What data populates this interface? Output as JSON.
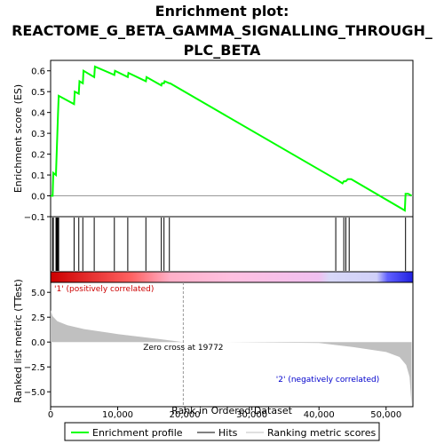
{
  "chart_data": {
    "type": "line",
    "title_lines": [
      "Enrichment plot:",
      "REACTOME_G_BETA_GAMMA_SIGNALLING_THROUGH_",
      "PLC_BETA"
    ],
    "top_panel": {
      "ylabel": "Enrichment score (ES)",
      "ylim": [
        -0.1,
        0.65
      ],
      "yticks": [
        -0.1,
        0.0,
        0.1,
        0.2,
        0.3,
        0.4,
        0.5,
        0.6
      ],
      "ytick_labels": [
        "−0.1",
        "0.0",
        "0.1",
        "0.2",
        "0.3",
        "0.4",
        "0.5",
        "0.6"
      ],
      "series": [
        {
          "name": "Enrichment profile",
          "color": "#00ff00",
          "x": [
            0,
            300,
            400,
            800,
            900,
            1000,
            1100,
            1200,
            3500,
            3600,
            4200,
            4300,
            4800,
            4900,
            6500,
            6600,
            9500,
            9600,
            11500,
            11600,
            14200,
            14300,
            16500,
            16600,
            16900,
            17000,
            17700,
            17800,
            42500,
            43500,
            43700,
            44000,
            44300,
            44500,
            44800,
            52800,
            52900,
            53300,
            53800
          ],
          "y": [
            0.0,
            0.0,
            0.11,
            0.1,
            0.2,
            0.3,
            0.39,
            0.48,
            0.44,
            0.5,
            0.49,
            0.55,
            0.54,
            0.6,
            0.57,
            0.62,
            0.58,
            0.6,
            0.57,
            0.59,
            0.55,
            0.57,
            0.53,
            0.54,
            0.54,
            0.55,
            0.54,
            0.54,
            0.08,
            0.06,
            0.07,
            0.07,
            0.08,
            0.08,
            0.08,
            -0.07,
            0.01,
            0.01,
            0.0
          ]
        }
      ]
    },
    "hits_panel": {
      "legend_label": "Hits",
      "hit_positions": [
        300,
        400,
        800,
        900,
        1000,
        1100,
        1200,
        3500,
        4200,
        4800,
        6500,
        9500,
        11500,
        14200,
        16500,
        16900,
        17700,
        42500,
        43700,
        44000,
        44500,
        52900
      ]
    },
    "bottom_panel": {
      "ylabel": "Ranked list metric (TTest)",
      "xlabel": "Rank in Ordered Dataset",
      "xlim": [
        0,
        54000
      ],
      "xticks": [
        0,
        10000,
        20000,
        30000,
        40000,
        50000
      ],
      "xtick_labels": [
        "0",
        "10,000",
        "20,000",
        "30,000",
        "40,000",
        "50,000"
      ],
      "ylim": [
        -6.5,
        6.0
      ],
      "yticks": [
        -5.0,
        -2.5,
        0.0,
        2.5,
        5.0
      ],
      "ytick_labels": [
        "−5.0",
        "−2.5",
        "0.0",
        "2.5",
        "5.0"
      ],
      "metric_curve": {
        "name": "Ranking metric scores",
        "color": "#c0c0c0",
        "x": [
          0,
          300,
          1000,
          2500,
          5000,
          10000,
          15000,
          19772,
          25000,
          40000,
          45000,
          50000,
          52000,
          53000,
          53500,
          53800
        ],
        "y": [
          3.2,
          2.6,
          2.1,
          1.7,
          1.3,
          0.8,
          0.4,
          0.0,
          0.0,
          -0.1,
          -0.5,
          -1.0,
          -1.5,
          -2.3,
          -3.5,
          -6.3
        ]
      },
      "zero_cross_label": "Zero cross at 19772",
      "zero_cross_x": 19772,
      "pos_label": "'1' (positively correlated)",
      "neg_label": "'2' (negatively correlated)"
    },
    "legend": {
      "items": [
        {
          "label": "Enrichment profile",
          "color": "#00ff00"
        },
        {
          "label": "Hits",
          "color": "#000000"
        },
        {
          "label": "Ranking metric scores",
          "color": "#c0c0c0"
        }
      ]
    }
  }
}
